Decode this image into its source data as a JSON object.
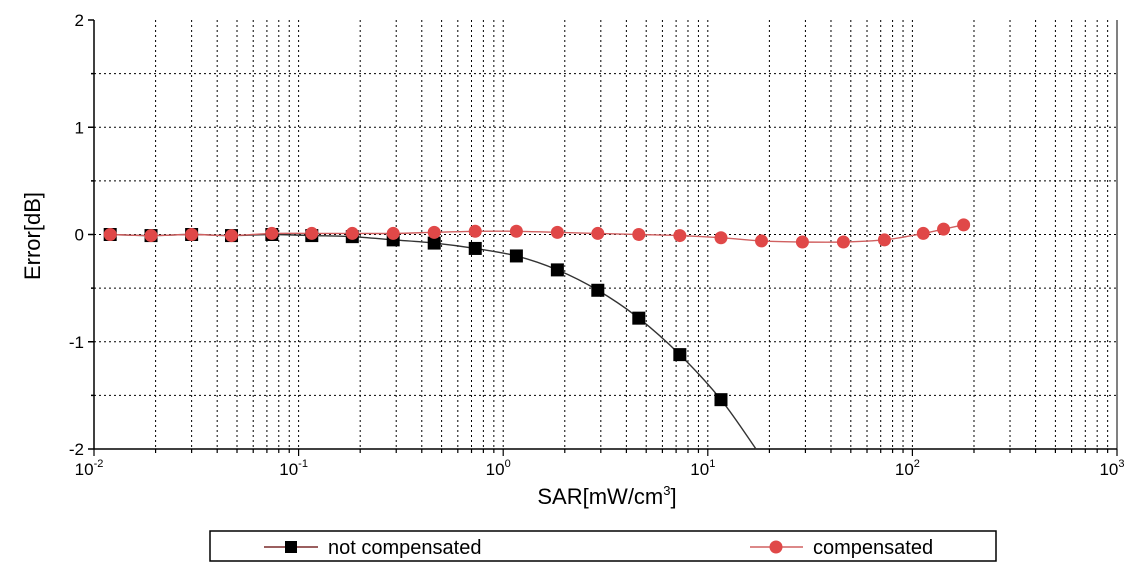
{
  "chart_data": {
    "type": "line",
    "xscale": "log",
    "xlim": [
      0.01,
      1000
    ],
    "ylim": [
      -2,
      2
    ],
    "grid": true,
    "xlabel_main": "SAR[mW/cm",
    "xlabel_sup": "3",
    "xlabel_end": "]",
    "ylabel": "Error[dB]",
    "x_tick_labels": [
      {
        "base": "10",
        "exp": "-2"
      },
      {
        "base": "10",
        "exp": "-1"
      },
      {
        "base": "10",
        "exp": "0"
      },
      {
        "base": "10",
        "exp": "1"
      },
      {
        "base": "10",
        "exp": "2"
      },
      {
        "base": "10",
        "exp": "3"
      }
    ],
    "y_tick_labels": [
      "2",
      "1",
      "0",
      "-1",
      "-2"
    ],
    "legend_position": "bottom",
    "series": [
      {
        "name": "not compensated",
        "color": "#000000",
        "line_color": "#333333",
        "marker": "square",
        "points": [
          [
            0.012,
            0.0
          ],
          [
            0.019,
            -0.01
          ],
          [
            0.03,
            0.0
          ],
          [
            0.047,
            -0.01
          ],
          [
            0.074,
            0.0
          ],
          [
            0.116,
            -0.01
          ],
          [
            0.183,
            -0.02
          ],
          [
            0.29,
            -0.05
          ],
          [
            0.46,
            -0.08
          ],
          [
            0.73,
            -0.13
          ],
          [
            1.16,
            -0.2
          ],
          [
            1.84,
            -0.33
          ],
          [
            2.9,
            -0.52
          ],
          [
            4.6,
            -0.78
          ],
          [
            7.3,
            -1.12
          ],
          [
            11.6,
            -1.54
          ]
        ],
        "curve_end": [
          17.2,
          -2.0
        ]
      },
      {
        "name": "compensated",
        "color": "#e04848",
        "line_color": "#d06060",
        "marker": "circle",
        "points": [
          [
            0.012,
            0.0
          ],
          [
            0.019,
            -0.01
          ],
          [
            0.03,
            0.0
          ],
          [
            0.047,
            -0.01
          ],
          [
            0.074,
            0.01
          ],
          [
            0.116,
            0.01
          ],
          [
            0.183,
            0.01
          ],
          [
            0.29,
            0.01
          ],
          [
            0.46,
            0.02
          ],
          [
            0.73,
            0.03
          ],
          [
            1.16,
            0.03
          ],
          [
            1.84,
            0.02
          ],
          [
            2.9,
            0.01
          ],
          [
            4.6,
            0.0
          ],
          [
            7.3,
            -0.01
          ],
          [
            11.6,
            -0.03
          ],
          [
            18.3,
            -0.06
          ],
          [
            29,
            -0.07
          ],
          [
            46,
            -0.07
          ],
          [
            73,
            -0.05
          ],
          [
            113,
            0.01
          ],
          [
            142,
            0.05
          ],
          [
            178,
            0.09
          ]
        ]
      }
    ]
  }
}
